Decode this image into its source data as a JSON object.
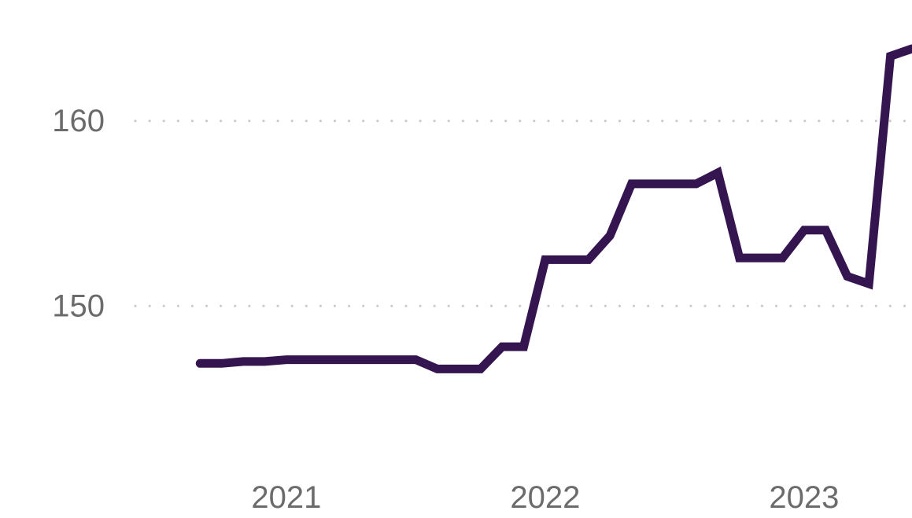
{
  "chart_data": {
    "type": "line",
    "title": "",
    "xlabel": "",
    "ylabel": "",
    "grid": {
      "x": false,
      "y": true,
      "style": "dotted"
    },
    "legend": "none",
    "colors": {
      "series": "#35154f",
      "grid": "#c8c8c8",
      "tick_text": "#6b6b6b"
    },
    "x_ticks": [
      {
        "label": "2021",
        "value": "2021-01-01"
      },
      {
        "label": "2022",
        "value": "2022-01-01"
      },
      {
        "label": "2023",
        "value": "2023-01-01"
      }
    ],
    "y_ticks": [
      {
        "label": "150",
        "value": 150
      },
      {
        "label": "160",
        "value": 160
      }
    ],
    "xlim": [
      "2020-06-01",
      "2023-06-01"
    ],
    "ylim": [
      143.6,
      163.9
    ],
    "series": [
      {
        "color": "#35154f",
        "points": [
          {
            "x": "2020-09-01",
            "y": 146.9
          },
          {
            "x": "2020-10-01",
            "y": 146.9
          },
          {
            "x": "2020-11-01",
            "y": 147.0
          },
          {
            "x": "2020-12-01",
            "y": 147.0
          },
          {
            "x": "2021-01-01",
            "y": 147.1
          },
          {
            "x": "2021-02-01",
            "y": 147.1
          },
          {
            "x": "2021-03-01",
            "y": 147.1
          },
          {
            "x": "2021-04-01",
            "y": 147.1
          },
          {
            "x": "2021-05-01",
            "y": 147.1
          },
          {
            "x": "2021-06-01",
            "y": 147.1
          },
          {
            "x": "2021-07-01",
            "y": 147.1
          },
          {
            "x": "2021-08-01",
            "y": 146.6
          },
          {
            "x": "2021-09-01",
            "y": 146.6
          },
          {
            "x": "2021-10-01",
            "y": 146.6
          },
          {
            "x": "2021-11-01",
            "y": 147.8
          },
          {
            "x": "2021-12-01",
            "y": 147.8
          },
          {
            "x": "2022-01-01",
            "y": 152.5
          },
          {
            "x": "2022-02-01",
            "y": 152.5
          },
          {
            "x": "2022-03-01",
            "y": 152.5
          },
          {
            "x": "2022-04-01",
            "y": 153.8
          },
          {
            "x": "2022-05-01",
            "y": 156.6
          },
          {
            "x": "2022-06-01",
            "y": 156.6
          },
          {
            "x": "2022-07-01",
            "y": 156.6
          },
          {
            "x": "2022-08-01",
            "y": 156.6
          },
          {
            "x": "2022-09-01",
            "y": 157.2
          },
          {
            "x": "2022-10-01",
            "y": 152.6
          },
          {
            "x": "2022-11-01",
            "y": 152.6
          },
          {
            "x": "2022-12-01",
            "y": 152.6
          },
          {
            "x": "2023-01-01",
            "y": 154.1
          },
          {
            "x": "2023-02-01",
            "y": 154.1
          },
          {
            "x": "2023-03-01",
            "y": 151.6
          },
          {
            "x": "2023-04-01",
            "y": 151.2
          },
          {
            "x": "2023-05-01",
            "y": 163.5
          },
          {
            "x": "2023-06-01",
            "y": 163.9
          }
        ]
      }
    ]
  }
}
